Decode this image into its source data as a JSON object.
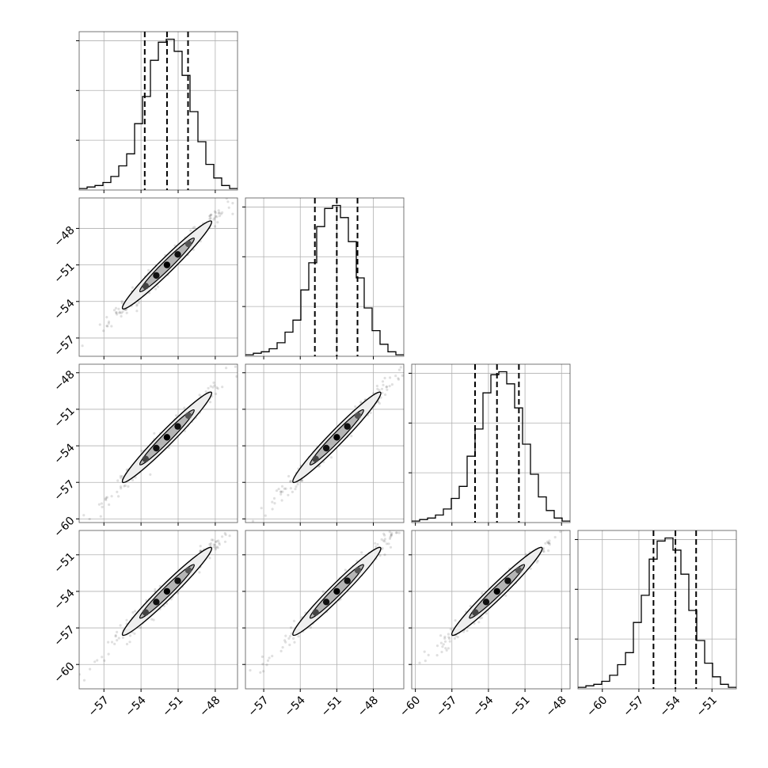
{
  "chart_data": {
    "type": "corner",
    "grid": true,
    "colors": {
      "line": "#000000",
      "grid": "#b0b0b0",
      "frame": "#000000",
      "points": "#000000",
      "background": "#ffffff"
    },
    "quantile_line_style": "dashed",
    "parameters": [
      {
        "range": [
          -59,
          -46.2
        ],
        "ticks": [
          -57,
          -54,
          -51,
          -48
        ],
        "tick_labels": [
          "−57",
          "−54",
          "−51",
          "−48"
        ],
        "quantiles": [
          -53.7,
          -51.9,
          -50.2
        ],
        "histogram": {
          "start": -59,
          "step": 0.64,
          "counts": [
            1,
            2,
            3,
            5,
            9,
            16,
            24,
            44,
            62,
            86,
            98,
            100,
            92,
            76,
            52,
            32,
            17,
            8,
            3,
            1
          ]
        }
      },
      {
        "range": [
          -58.5,
          -45.5
        ],
        "ticks": [
          -57,
          -54,
          -51,
          -48
        ],
        "tick_labels": [
          "−57",
          "−54",
          "−51",
          "−48"
        ],
        "quantiles": [
          -52.8,
          -51.0,
          -49.3
        ],
        "histogram": {
          "start": -58.5,
          "step": 0.65,
          "counts": [
            1,
            2,
            3,
            5,
            9,
            16,
            24,
            44,
            62,
            86,
            98,
            100,
            92,
            76,
            52,
            32,
            17,
            8,
            3,
            1
          ]
        }
      },
      {
        "range": [
          -60.3,
          -47.3
        ],
        "ticks": [
          -60,
          -57,
          -54,
          -51,
          -48
        ],
        "tick_labels": [
          "−60",
          "−57",
          "−54",
          "−51",
          "−48"
        ],
        "quantiles": [
          -55.1,
          -53.3,
          -51.5
        ],
        "histogram": {
          "start": -60.3,
          "step": 0.65,
          "counts": [
            1,
            2,
            3,
            5,
            9,
            16,
            24,
            44,
            62,
            86,
            98,
            100,
            92,
            76,
            52,
            32,
            17,
            8,
            3,
            1
          ]
        }
      },
      {
        "range": [
          -62,
          -49
        ],
        "ticks": [
          -60,
          -57,
          -54,
          -51
        ],
        "tick_labels": [
          "−60",
          "−57",
          "−54",
          "−51"
        ],
        "quantiles": [
          -55.8,
          -54.0,
          -52.3
        ],
        "histogram": {
          "start": -62,
          "step": 0.65,
          "counts": [
            1,
            2,
            3,
            5,
            9,
            16,
            24,
            44,
            62,
            86,
            98,
            100,
            92,
            76,
            52,
            32,
            17,
            8,
            3,
            1
          ]
        }
      }
    ],
    "hist_max": 105,
    "hist_ticks": [
      33,
      66,
      99
    ]
  }
}
